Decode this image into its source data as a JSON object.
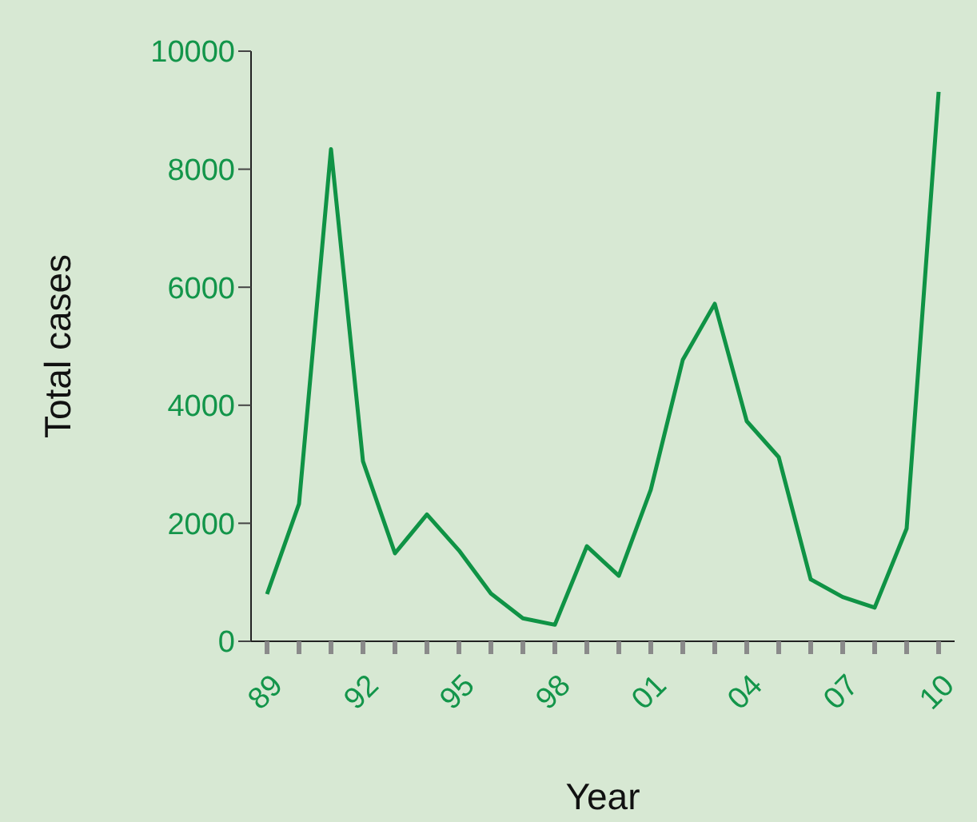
{
  "chart_data": {
    "type": "line",
    "xlabel": "Year",
    "ylabel": "Total cases",
    "categories": [
      "89",
      null,
      null,
      "92",
      null,
      null,
      "95",
      null,
      null,
      "98",
      null,
      null,
      "01",
      null,
      null,
      "04",
      null,
      null,
      "07",
      null,
      null,
      "10"
    ],
    "series": [
      {
        "color": "#0f9345",
        "values": [
          800,
          2330,
          8340,
          3050,
          1490,
          2150,
          1540,
          810,
          390,
          280,
          1610,
          1110,
          2570,
          4770,
          5720,
          3730,
          3120,
          1050,
          750,
          570,
          1910,
          9310
        ]
      }
    ],
    "ylim": [
      0,
      10000
    ],
    "yticks": [
      0,
      2000,
      4000,
      6000,
      8000,
      10000
    ]
  }
}
